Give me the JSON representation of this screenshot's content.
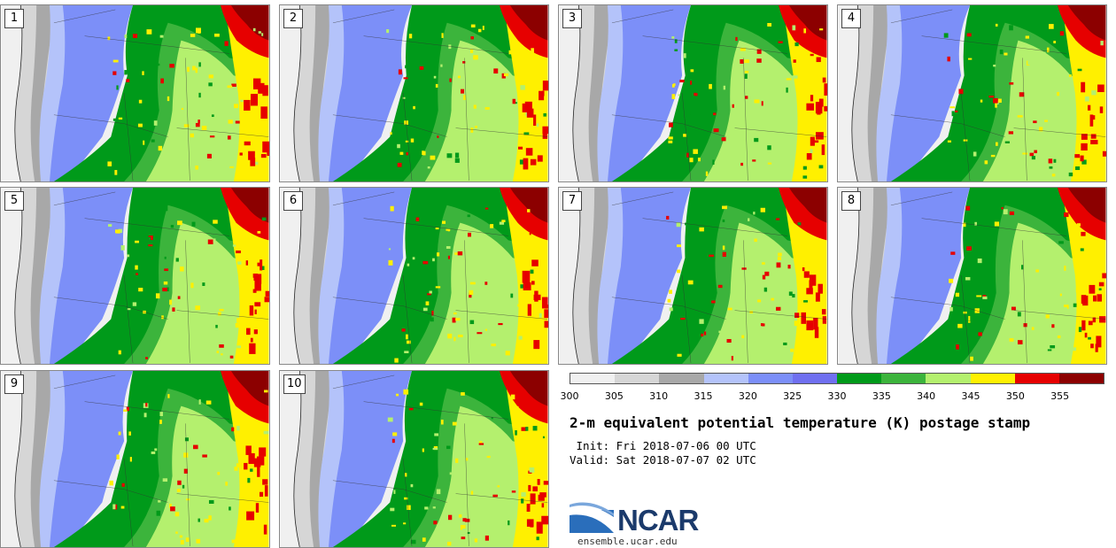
{
  "panels": [
    {
      "label": "1"
    },
    {
      "label": "2"
    },
    {
      "label": "3"
    },
    {
      "label": "4"
    },
    {
      "label": "5"
    },
    {
      "label": "6"
    },
    {
      "label": "7"
    },
    {
      "label": "8"
    },
    {
      "label": "9"
    },
    {
      "label": "10"
    }
  ],
  "colorbar": {
    "ticks": [
      "300",
      "305",
      "310",
      "315",
      "320",
      "325",
      "330",
      "335",
      "340",
      "345",
      "350",
      "355"
    ],
    "colors": [
      "#f0f0f0",
      "#d6d6d6",
      "#a8a8a8",
      "#b4c3fa",
      "#7c8ff8",
      "#7070f0",
      "#009a1a",
      "#3cb43c",
      "#b4f06e",
      "#fff000",
      "#e60000",
      "#8c0000"
    ]
  },
  "title": "2-m equivalent potential temperature (K) postage stamp",
  "init": " Init: Fri 2018-07-06 00 UTC",
  "valid": "Valid: Sat 2018-07-07 02 UTC",
  "logo": {
    "text": "NCAR",
    "url": "ensemble.ucar.edu",
    "colors": [
      "#2a6ebb",
      "#1b3a6b"
    ]
  }
}
